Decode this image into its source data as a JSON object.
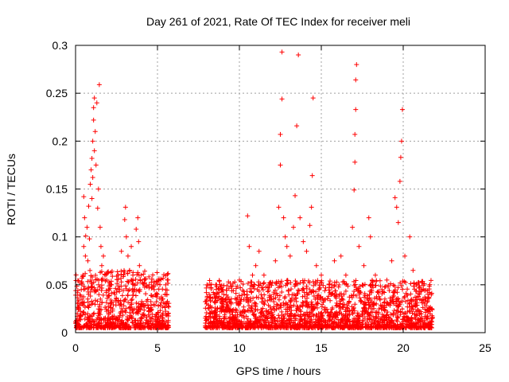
{
  "chart_data": {
    "type": "scatter",
    "title": "Day 261 of 2021, Rate Of TEC Index for receiver meli",
    "xlabel": "GPS time / hours",
    "ylabel": "ROTI / TECUs",
    "xlim": [
      0,
      25
    ],
    "ylim": [
      0,
      0.3
    ],
    "xticks": [
      0,
      5,
      10,
      15,
      20,
      25
    ],
    "yticks": [
      0,
      0.05,
      0.1,
      0.15,
      0.2,
      0.25,
      0.3
    ],
    "xtick_labels": [
      "0",
      "5",
      "10",
      "15",
      "20",
      "25"
    ],
    "ytick_labels": [
      "0",
      "0.05",
      "0.1",
      "0.15",
      "0.2",
      "0.25",
      "0.3"
    ],
    "grid": true,
    "marker": "+",
    "series": [
      {
        "name": "ROTI",
        "color": "#ff0000",
        "points": [
          [
            0.1,
            0.012
          ],
          [
            0.2,
            0.025
          ],
          [
            0.3,
            0.018
          ],
          [
            0.35,
            0.045
          ],
          [
            0.4,
            0.03
          ],
          [
            0.45,
            0.06
          ],
          [
            0.5,
            0.09
          ],
          [
            0.5,
            0.142
          ],
          [
            0.55,
            0.12
          ],
          [
            0.6,
            0.08
          ],
          [
            0.62,
            0.101
          ],
          [
            0.7,
            0.11
          ],
          [
            0.75,
            0.075
          ],
          [
            0.8,
            0.132
          ],
          [
            0.85,
            0.098
          ],
          [
            0.9,
            0.155
          ],
          [
            0.95,
            0.17
          ],
          [
            1.0,
            0.182
          ],
          [
            1.0,
            0.14
          ],
          [
            1.05,
            0.2
          ],
          [
            1.05,
            0.162
          ],
          [
            1.1,
            0.222
          ],
          [
            1.1,
            0.235
          ],
          [
            1.15,
            0.245
          ],
          [
            1.15,
            0.19
          ],
          [
            1.2,
            0.21
          ],
          [
            1.25,
            0.175
          ],
          [
            1.3,
            0.24
          ],
          [
            1.35,
            0.13
          ],
          [
            1.4,
            0.15
          ],
          [
            1.45,
            0.259
          ],
          [
            1.5,
            0.11
          ],
          [
            1.55,
            0.09
          ],
          [
            1.6,
            0.07
          ],
          [
            1.7,
            0.08
          ],
          [
            1.8,
            0.06
          ],
          [
            1.9,
            0.055
          ],
          [
            2.0,
            0.045
          ],
          [
            2.2,
            0.05
          ],
          [
            2.4,
            0.04
          ],
          [
            2.6,
            0.06
          ],
          [
            2.8,
            0.085
          ],
          [
            3.0,
            0.118
          ],
          [
            3.05,
            0.131
          ],
          [
            3.1,
            0.1
          ],
          [
            3.2,
            0.08
          ],
          [
            3.3,
            0.065
          ],
          [
            3.4,
            0.09
          ],
          [
            3.5,
            0.06
          ],
          [
            3.7,
            0.108
          ],
          [
            3.8,
            0.12
          ],
          [
            3.85,
            0.095
          ],
          [
            3.9,
            0.07
          ],
          [
            4.0,
            0.06
          ],
          [
            4.2,
            0.055
          ],
          [
            4.5,
            0.05
          ],
          [
            4.8,
            0.045
          ],
          [
            5.0,
            0.04
          ],
          [
            5.3,
            0.035
          ],
          [
            5.5,
            0.05
          ],
          [
            8.0,
            0.03
          ],
          [
            8.2,
            0.05
          ],
          [
            8.5,
            0.04
          ],
          [
            9.0,
            0.035
          ],
          [
            9.5,
            0.03
          ],
          [
            10.0,
            0.055
          ],
          [
            10.5,
            0.122
          ],
          [
            10.6,
            0.09
          ],
          [
            10.8,
            0.06
          ],
          [
            11.0,
            0.07
          ],
          [
            11.2,
            0.085
          ],
          [
            11.5,
            0.06
          ],
          [
            11.8,
            0.05
          ],
          [
            12.2,
            0.075
          ],
          [
            12.4,
            0.131
          ],
          [
            12.5,
            0.175
          ],
          [
            12.5,
            0.207
          ],
          [
            12.6,
            0.244
          ],
          [
            12.6,
            0.293
          ],
          [
            12.7,
            0.12
          ],
          [
            12.8,
            0.1
          ],
          [
            12.9,
            0.09
          ],
          [
            13.1,
            0.08
          ],
          [
            13.3,
            0.11
          ],
          [
            13.4,
            0.143
          ],
          [
            13.5,
            0.216
          ],
          [
            13.6,
            0.29
          ],
          [
            13.7,
            0.12
          ],
          [
            13.9,
            0.095
          ],
          [
            14.1,
            0.085
          ],
          [
            14.3,
            0.112
          ],
          [
            14.4,
            0.131
          ],
          [
            14.45,
            0.164
          ],
          [
            14.5,
            0.245
          ],
          [
            14.7,
            0.07
          ],
          [
            15.0,
            0.06
          ],
          [
            15.5,
            0.05
          ],
          [
            15.8,
            0.075
          ],
          [
            16.2,
            0.08
          ],
          [
            16.5,
            0.06
          ],
          [
            16.9,
            0.11
          ],
          [
            17.0,
            0.149
          ],
          [
            17.05,
            0.178
          ],
          [
            17.05,
            0.207
          ],
          [
            17.1,
            0.233
          ],
          [
            17.1,
            0.264
          ],
          [
            17.15,
            0.28
          ],
          [
            17.3,
            0.09
          ],
          [
            17.6,
            0.07
          ],
          [
            17.9,
            0.12
          ],
          [
            18.0,
            0.1
          ],
          [
            18.3,
            0.06
          ],
          [
            18.7,
            0.045
          ],
          [
            19.0,
            0.055
          ],
          [
            19.3,
            0.075
          ],
          [
            19.5,
            0.141
          ],
          [
            19.6,
            0.131
          ],
          [
            19.7,
            0.115
          ],
          [
            19.8,
            0.158
          ],
          [
            19.85,
            0.183
          ],
          [
            19.9,
            0.2
          ],
          [
            19.95,
            0.233
          ],
          [
            20.1,
            0.08
          ],
          [
            20.4,
            0.1
          ],
          [
            20.6,
            0.065
          ],
          [
            20.8,
            0.05
          ],
          [
            21.0,
            0.04
          ],
          [
            21.3,
            0.03
          ],
          [
            21.6,
            0.025
          ]
        ]
      }
    ]
  }
}
